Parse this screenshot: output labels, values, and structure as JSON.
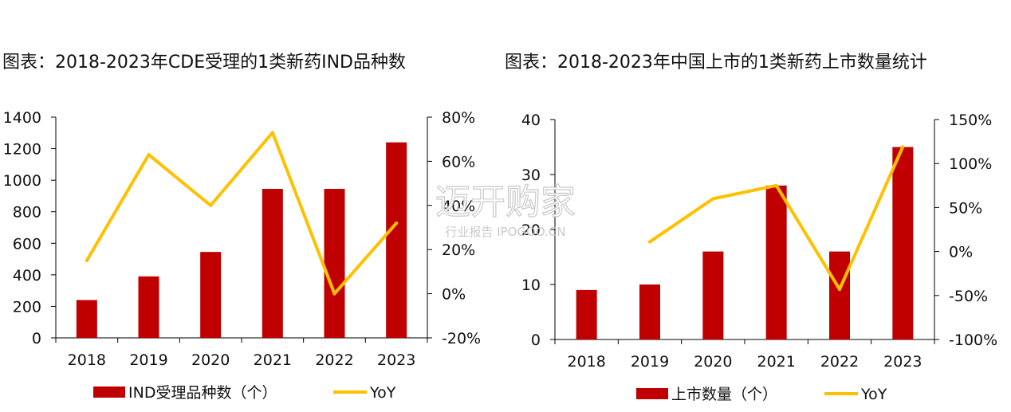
{
  "colors": {
    "bar": "#c00000",
    "line": "#ffc000",
    "axis": "#000000"
  },
  "watermark": {
    "brand": "迈开购家",
    "sub": "行业报告 IPOGOO.CN"
  },
  "chart_data": [
    {
      "type": "bar",
      "title": "图表：2018-2023年CDE受理的1类新药IND品种数",
      "categories": [
        "2018",
        "2019",
        "2020",
        "2021",
        "2022",
        "2023"
      ],
      "series": [
        {
          "name": "IND受理品种数（个）",
          "type": "bar",
          "axis": "left",
          "values": [
            240,
            390,
            545,
            945,
            945,
            1240
          ]
        },
        {
          "name": "YoY",
          "type": "line",
          "axis": "right",
          "unit": "%",
          "values": [
            15,
            63,
            40,
            73,
            0,
            32
          ]
        }
      ],
      "ylim_left": [
        0,
        1400
      ],
      "yticks_left": [
        "0",
        "200",
        "400",
        "600",
        "800",
        "1000",
        "1200",
        "1400"
      ],
      "ylim_right": [
        -20,
        80
      ],
      "yticks_right": [
        "-20%",
        "0%",
        "20%",
        "40%",
        "60%",
        "80%"
      ],
      "legend": [
        "IND受理品种数（个）",
        "YoY"
      ],
      "legend_position": "bottom"
    },
    {
      "type": "bar",
      "title": "图表：2018-2023年中国上市的1类新药上市数量统计",
      "categories": [
        "2018",
        "2019",
        "2020",
        "2021",
        "2022",
        "2023"
      ],
      "series": [
        {
          "name": "上市数量（个）",
          "type": "bar",
          "axis": "left",
          "values": [
            9,
            10,
            16,
            28,
            16,
            35
          ]
        },
        {
          "name": "YoY",
          "type": "line",
          "axis": "right",
          "unit": "%",
          "values": [
            null,
            11,
            60,
            75,
            -43,
            119
          ]
        }
      ],
      "ylim_left": [
        0,
        40
      ],
      "yticks_left": [
        "0",
        "10",
        "20",
        "30",
        "40"
      ],
      "ylim_right": [
        -100,
        150
      ],
      "yticks_right": [
        "-100%",
        "-50%",
        "0%",
        "50%",
        "100%",
        "150%"
      ],
      "legend": [
        "上市数量（个）",
        "YoY"
      ],
      "legend_position": "bottom"
    }
  ]
}
